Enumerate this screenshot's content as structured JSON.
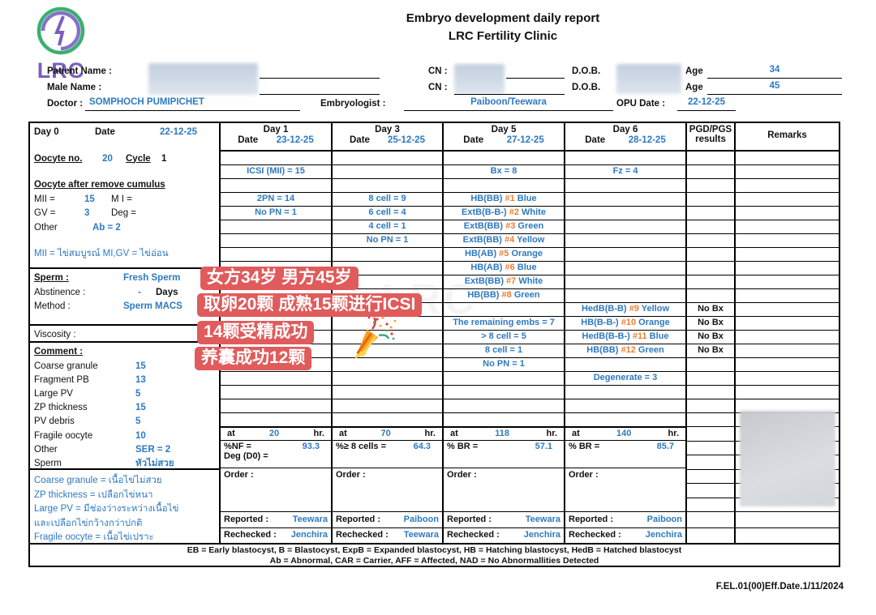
{
  "header": {
    "title": "Embryo development daily report",
    "subtitle": "LRC Fertility Clinic",
    "logo_text": "LRC",
    "patient_name_label": "Patient Name :",
    "male_name_label": "Male Name :",
    "doctor_label": "Doctor :",
    "doctor_value": "SOMPHOCH PUMIPICHET",
    "embryologist_label": "Embryologist :",
    "embryologist_value": "Paiboon/Teewara",
    "cn_label_1": "CN :",
    "cn_label_2": "CN :",
    "dob_label_1": "D.O.B.",
    "dob_label_2": "D.O.B.",
    "age_label_1": "Age",
    "age_value_1": "34",
    "age_label_2": "Age",
    "age_value_2": "45",
    "opu_date_label": "OPU Date :",
    "opu_date_value": "22-12-25"
  },
  "day0": {
    "day_label": "Day 0",
    "date_label": "Date",
    "date": "22-12-25",
    "oocyte_no_label": "Oocyte no.",
    "oocyte_no": "20",
    "cycle_label": "Cycle",
    "cycle": "1",
    "section_title": "Oocyte after remove cumulus",
    "mii_label": "MII =",
    "mii": "15",
    "mi_label": "M I =",
    "gv_label": "GV =",
    "gv": "3",
    "deg_label": "Deg =",
    "other_label": "Other",
    "other_value": "Ab = 2",
    "note": "MII = ไข่สมบูรณ์ MI,GV = ไข่อ่อน",
    "sperm_label": "Sperm :",
    "sperm_value": "Fresh Sperm",
    "abstinence_label": "Abstinence :",
    "abstinence_value": "-",
    "abstinence_unit": "Days",
    "method_label": "Method :",
    "method_value": "Sperm MACS",
    "viscosity_label": "Viscosity :",
    "comment_label": "Comment :",
    "comment_items": [
      {
        "label": "Coarse granule",
        "value": "15"
      },
      {
        "label": "Fragment PB",
        "value": "13"
      },
      {
        "label": "Large PV",
        "value": "5"
      },
      {
        "label": "ZP thickness",
        "value": "15"
      },
      {
        "label": "PV debris",
        "value": "5"
      },
      {
        "label": "Fragile oocyte",
        "value": "10"
      },
      {
        "label": "Other",
        "value": "SER = 2"
      },
      {
        "label": "Sperm",
        "value": "หัวไม่สวย"
      }
    ],
    "legend_lines": [
      "Coarse granule  = เนื้อไข่ไม่สวย",
      "ZP thickness = เปลือกไข่หนา",
      "Large PV = มีช่องว่างระหว่างเนื้อไข่",
      "และเปลือกไข่กว้างกว่าปกติ",
      "Fragile oocyte = เนื้อไข่เปราะ"
    ]
  },
  "grid": {
    "columns": [
      {
        "label": "Day 1",
        "date_label": "Date",
        "date": "23-12-25"
      },
      {
        "label": "Day 3",
        "date_label": "Date",
        "date": "25-12-25"
      },
      {
        "label": "Day 5",
        "date_label": "Date",
        "date": "27-12-25"
      },
      {
        "label": "Day 6",
        "date_label": "Date",
        "date": "28-12-25"
      }
    ],
    "pgd_header_line1": "PGD/PGS",
    "pgd_header_line2": "results",
    "remarks_header": "Remarks",
    "rows": [
      {
        "d1": "",
        "d3": "",
        "d5": "",
        "d6": "",
        "pgd": ""
      },
      {
        "d1": "ICSI (MII) = 15",
        "d3": "",
        "d5": "Bx = 8",
        "d6": "Fz = 4",
        "pgd": ""
      },
      {
        "d1": "",
        "d3": "",
        "d5": "",
        "d6": "",
        "pgd": ""
      },
      {
        "d1": "2PN = 14",
        "d3": "8 cell = 9",
        "d5": "HB(BB) #1 Blue",
        "d6": "",
        "pgd": ""
      },
      {
        "d1": "No PN = 1",
        "d3": "6 cell = 4",
        "d5": "ExtB(B-B-) #2 White",
        "d6": "",
        "pgd": ""
      },
      {
        "d1": "",
        "d3": "4 cell = 1",
        "d5": "ExtB(BB) #3 Green",
        "d6": "",
        "pgd": ""
      },
      {
        "d1": "",
        "d3": "No PN = 1",
        "d5": "ExtB(BB) #4 Yellow",
        "d6": "",
        "pgd": ""
      },
      {
        "d1": "",
        "d3": "",
        "d5": "HB(AB) #5 Orange",
        "d6": "",
        "pgd": ""
      },
      {
        "d1": "",
        "d3": "",
        "d5": "HB(AB) #6 Blue",
        "d6": "",
        "pgd": ""
      },
      {
        "d1": "",
        "d3": "",
        "d5": "ExtB(BB) #7 White",
        "d6": "",
        "pgd": ""
      },
      {
        "d1": "",
        "d3": "",
        "d5": "HB(BB) #8 Green",
        "d6": "",
        "pgd": ""
      },
      {
        "d1": "",
        "d3": "",
        "d5": "",
        "d6": "HedB(B-B) #9 Yellow",
        "pgd": "No Bx"
      },
      {
        "d1": "",
        "d3": "",
        "d5": "The remaining embs = 7",
        "d6": "HB(B-B-) #10 Orange",
        "pgd": "No Bx"
      },
      {
        "d1": "",
        "d3": "",
        "d5": "> 8 cell = 5",
        "d6": "HedB(B-B-) #11 Blue",
        "pgd": "No Bx"
      },
      {
        "d1": "",
        "d3": "",
        "d5": "8 cell = 1",
        "d6": "HB(BB) #12 Green",
        "pgd": "No Bx"
      },
      {
        "d1": "",
        "d3": "",
        "d5": "No PN = 1",
        "d6": "",
        "pgd": ""
      },
      {
        "d1": "",
        "d3": "",
        "d5": "",
        "d6": "Degenerate = 3",
        "pgd": ""
      },
      {
        "d1": "",
        "d3": "",
        "d5": "",
        "d6": "",
        "pgd": ""
      },
      {
        "d1": "",
        "d3": "",
        "d5": "",
        "d6": "",
        "pgd": ""
      },
      {
        "d1": "",
        "d3": "",
        "d5": "",
        "d6": "",
        "pgd": ""
      }
    ],
    "hours_prefix": "at",
    "hours_suffix": "hr.",
    "hours": [
      "20",
      "70",
      "118",
      "140"
    ],
    "stats": [
      {
        "label": "%NF =",
        "value": "93.3",
        "extra": "Deg (D0) ="
      },
      {
        "label": "%≥ 8 cells =",
        "value": "64.3",
        "extra": ""
      },
      {
        "label": "% BR =",
        "value": "57.1",
        "extra": ""
      },
      {
        "label": "% BR =",
        "value": "85.7",
        "extra": ""
      }
    ],
    "order_label": "Order :",
    "reported_label": "Reported :",
    "rechecked_label": "Rechecked :",
    "reported": [
      "Teewara",
      "Paiboon",
      "Teewara",
      "Paiboon"
    ],
    "rechecked": [
      "Jenchira",
      "Teewara",
      "Jenchira",
      "Jenchira"
    ]
  },
  "annotations": {
    "badges": [
      "女方34岁 男方45岁",
      "取卵20颗 成熟15颗进行ICSI",
      "14颗受精成功",
      "养囊成功12颗"
    ],
    "party_popper_icon": "party-popper",
    "badge_color": "#e05b5b"
  },
  "legend": {
    "line1": "EB = Early blastocyst, B =  Blastocyst, ExpB = Expanded  blastocyst, HB = Hatching blastocyst, HedB = Hatched blastocyst",
    "line2": "Ab = Abnormal, CAR = Carrier, AFF = Affected, NAD = No Abnormallities Detected"
  },
  "footer": {
    "form_code": "F.EL.01(00)Eff.Date.1/11/2024"
  },
  "colors": {
    "blue": "#2e79c1",
    "orange": "#ED7D31",
    "badge_red": "#e05b5b",
    "logo_green": "#3aaf6f",
    "logo_purple": "#7a5fc0"
  }
}
